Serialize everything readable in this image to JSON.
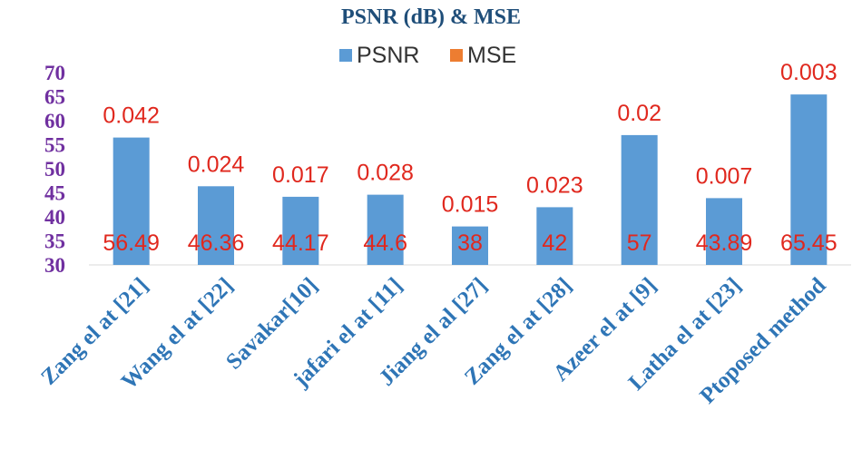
{
  "chart_data": {
    "type": "bar",
    "title": "PSNR (dB) & MSE",
    "legend": [
      {
        "name": "PSNR",
        "color": "#5b9bd5"
      },
      {
        "name": "MSE",
        "color": "#ed7d31"
      }
    ],
    "legend_position": "top",
    "categories": [
      "Zang el at [21]",
      "Wang el at [22]",
      "Savakar[10]",
      "jafari el at [11]",
      "Jiang el al [27]",
      "Zang el at [28]",
      "Azeer el at [9]",
      "Latha el at [23]",
      "Ptoposed method"
    ],
    "series": [
      {
        "name": "PSNR",
        "values": [
          56.49,
          46.36,
          44.17,
          44.6,
          38,
          42,
          57,
          43.89,
          65.45
        ],
        "labels": [
          "56.49",
          "46.36",
          "44.17",
          "44.6",
          "38",
          "42",
          "57",
          "43.89",
          "65.45"
        ]
      },
      {
        "name": "MSE",
        "values": [
          0.042,
          0.024,
          0.017,
          0.028,
          0.015,
          0.023,
          0.02,
          0.007,
          0.003
        ],
        "labels": [
          "0.042",
          "0.024",
          "0.017",
          "0.028",
          "0.015",
          "0.023",
          "0.02",
          "0.007",
          "0.003"
        ]
      }
    ],
    "ylim": [
      30,
      70
    ],
    "yticks": [
      "30",
      "35",
      "40",
      "45",
      "50",
      "55",
      "60",
      "65",
      "70"
    ],
    "grid": false,
    "colors": {
      "bar": "#5b9bd5",
      "label": "#e0281e",
      "ytick": "#7030a0",
      "xtick": "#2e75b6",
      "title": "#1f4e79"
    }
  }
}
